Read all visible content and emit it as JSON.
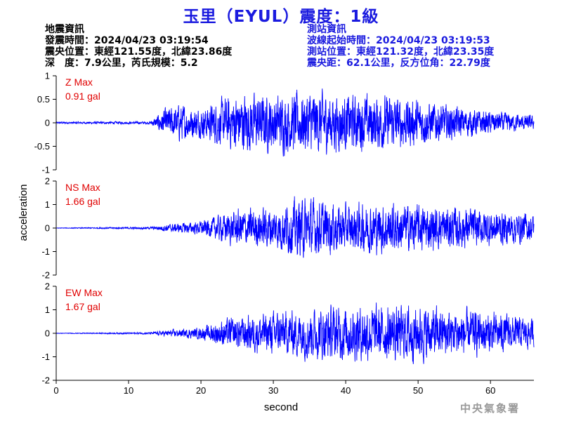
{
  "title": "玉里（EYUL）震度：1級",
  "quake_info": {
    "heading": "地震資訊",
    "time": "發震時間：2024/04/23 03:19:54",
    "epicenter": "震央位置：東經121.55度，北緯23.86度",
    "depth_mag": "深　度：7.9公里，芮氏規模：5.2"
  },
  "station_info": {
    "heading": "測站資訊",
    "wave_time": "波線起始時間：2024/04/23 03:19:53",
    "station_pos": "測站位置：東經121.32度，北緯23.35度",
    "distance": "震央距：62.1公里，反方位角：22.79度"
  },
  "logo": "中央氣象署",
  "chart_data": {
    "type": "line",
    "xlabel": "second",
    "ylabel": "acceleration",
    "xlim": [
      0,
      66
    ],
    "x_ticks": [
      "0",
      "10",
      "20",
      "30",
      "40",
      "50",
      "60"
    ],
    "line_color": "#0000ff",
    "grid": false,
    "panels": [
      {
        "name": "Z",
        "max_label": "Z Max",
        "max_value": "0.91 gal",
        "ylim": [
          -1,
          1
        ],
        "y_ticks": [
          "1",
          "0.5",
          "0",
          "-0.5",
          "-1"
        ],
        "envelope": {
          "x": [
            0,
            13,
            15,
            17,
            20,
            22,
            25,
            30,
            35,
            40,
            45,
            50,
            55,
            60,
            66
          ],
          "amplitude": [
            0.02,
            0.03,
            0.3,
            0.4,
            0.3,
            0.45,
            0.65,
            0.6,
            0.7,
            0.6,
            0.6,
            0.5,
            0.35,
            0.25,
            0.15
          ]
        }
      },
      {
        "name": "NS",
        "max_label": "NS Max",
        "max_value": "1.66 gal",
        "ylim": [
          -2,
          2
        ],
        "y_ticks": [
          "2",
          "1",
          "0",
          "-1",
          "-2"
        ],
        "envelope": {
          "x": [
            0,
            13,
            15,
            20,
            22,
            25,
            30,
            34,
            40,
            45,
            50,
            55,
            60,
            66
          ],
          "amplitude": [
            0.01,
            0.05,
            0.15,
            0.3,
            0.5,
            0.8,
            0.9,
            1.3,
            1.0,
            1.1,
            1.0,
            0.9,
            0.8,
            0.6
          ]
        }
      },
      {
        "name": "EW",
        "max_label": "EW Max",
        "max_value": "1.67 gal",
        "ylim": [
          -2,
          2
        ],
        "y_ticks": [
          "2",
          "1",
          "0",
          "-1",
          "-2"
        ],
        "envelope": {
          "x": [
            0,
            13,
            15,
            20,
            23,
            27,
            30,
            35,
            40,
            45,
            50,
            55,
            60,
            66
          ],
          "amplitude": [
            0.01,
            0.04,
            0.12,
            0.25,
            0.6,
            0.8,
            0.9,
            1.1,
            1.2,
            1.2,
            1.2,
            1.0,
            0.9,
            0.6
          ]
        }
      }
    ]
  }
}
